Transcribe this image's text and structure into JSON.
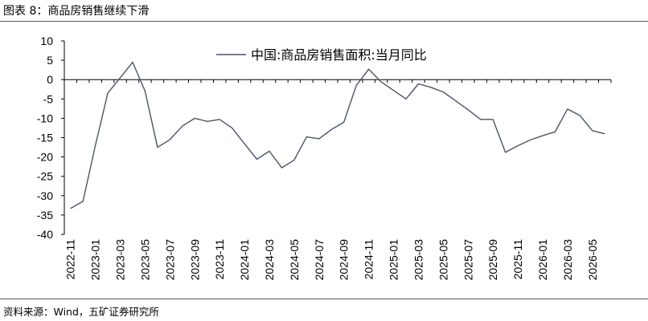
{
  "figure_title": "图表 8：商品房销售继续下滑",
  "source_note": "资料来源：Wind，五矿证券研究所",
  "colors": {
    "line": "#4a5468",
    "axis": "#000000"
  },
  "chart_data": {
    "type": "line",
    "title": "",
    "xlabel": "",
    "ylabel": "",
    "ylim": [
      -40,
      10
    ],
    "yticks": [
      10,
      5,
      0,
      -5,
      -10,
      -15,
      -20,
      -25,
      -30,
      -35,
      -40
    ],
    "grid": false,
    "legend_position": "top-center",
    "x": [
      "2022-11",
      "2022-12",
      "2023-01",
      "2023-02",
      "2023-03",
      "2023-04",
      "2023-05",
      "2023-06",
      "2023-07",
      "2023-08",
      "2023-09",
      "2023-10",
      "2023-11",
      "2023-12",
      "2024-01",
      "2024-02",
      "2024-03",
      "2024-04",
      "2024-05",
      "2024-06",
      "2024-07",
      "2024-08",
      "2024-09",
      "2024-10",
      "2024-11",
      "2024-12",
      "2025-01",
      "2025-02",
      "2025-03",
      "2025-04",
      "2025-05",
      "2025-06",
      "2025-07",
      "2025-08",
      "2025-09",
      "2025-10",
      "2025-11",
      "2025-12",
      "2026-01",
      "2026-02",
      "2026-03",
      "2026-04",
      "2026-05",
      "2026-06"
    ],
    "xtick_labels": [
      "2022-11",
      "2023-01",
      "2023-03",
      "2023-05",
      "2023-07",
      "2023-09",
      "2023-11",
      "2024-01",
      "2024-03",
      "2024-05",
      "2024-07",
      "2024-09",
      "2024-11",
      "2025-01",
      "2025-03",
      "2025-05",
      "2025-07",
      "2025-09",
      "2025-11",
      "2026-01",
      "2026-03",
      "2026-05"
    ],
    "series": [
      {
        "name": "中国:商品房销售面积:当月同比",
        "values": [
          -33.3,
          -31.5,
          -17,
          -3.5,
          0.5,
          4.5,
          -3,
          -17.5,
          -15.5,
          -12,
          -10,
          -10.8,
          -10.3,
          -12.5,
          -16.6,
          -20.6,
          -18.5,
          -22.8,
          -20.8,
          -14.8,
          -15.3,
          -12.9,
          -11,
          -1.5,
          2.7,
          -0.6,
          -2.8,
          -5,
          -1.1,
          -2,
          -3.2,
          -5.5,
          -7.8,
          -10.3,
          -10.3,
          -18.8,
          -17.1,
          -15.6,
          -14.5,
          -13.5,
          -7.6,
          -9.3,
          -13.2,
          -14
        ]
      }
    ]
  }
}
